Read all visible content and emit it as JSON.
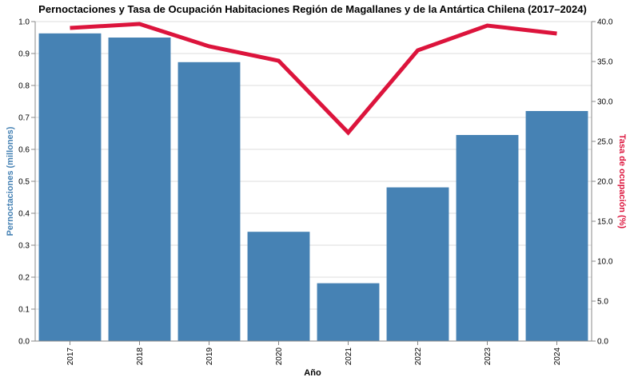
{
  "chart_data": {
    "type": "bar",
    "title": "Pernoctaciones y Tasa de Ocupación Habitaciones Región de Magallanes y de la Antártica Chilena (2017–2024)",
    "xlabel": "Año",
    "ylabel_left": "Pernoctaciones (millones)",
    "ylabel_right": "Tasa de ocupación (%)",
    "categories": [
      "2017",
      "2018",
      "2019",
      "2020",
      "2021",
      "2022",
      "2023",
      "2024"
    ],
    "series": [
      {
        "type": "bar",
        "axis": "left",
        "values": [
          0.963,
          0.95,
          0.873,
          0.342,
          0.181,
          0.481,
          0.645,
          0.72
        ]
      },
      {
        "type": "line",
        "axis": "right",
        "values": [
          39.2,
          39.7,
          36.9,
          35.1,
          26.1,
          36.4,
          39.5,
          38.5
        ]
      }
    ],
    "ylim_left": [
      0,
      1.0
    ],
    "yticks_left": [
      "0.0",
      "0.1",
      "0.2",
      "0.3",
      "0.4",
      "0.5",
      "0.6",
      "0.7",
      "0.8",
      "0.9",
      "1.0"
    ],
    "ylim_right": [
      0,
      40
    ],
    "yticks_right": [
      "0.0",
      "5.0",
      "10.0",
      "15.0",
      "20.0",
      "25.0",
      "30.0",
      "35.0",
      "40.0"
    ],
    "grid": true,
    "colors": {
      "bar": "#4682b4",
      "line": "#dc143c",
      "grid": "#dddddd",
      "axis": "#888888"
    }
  }
}
